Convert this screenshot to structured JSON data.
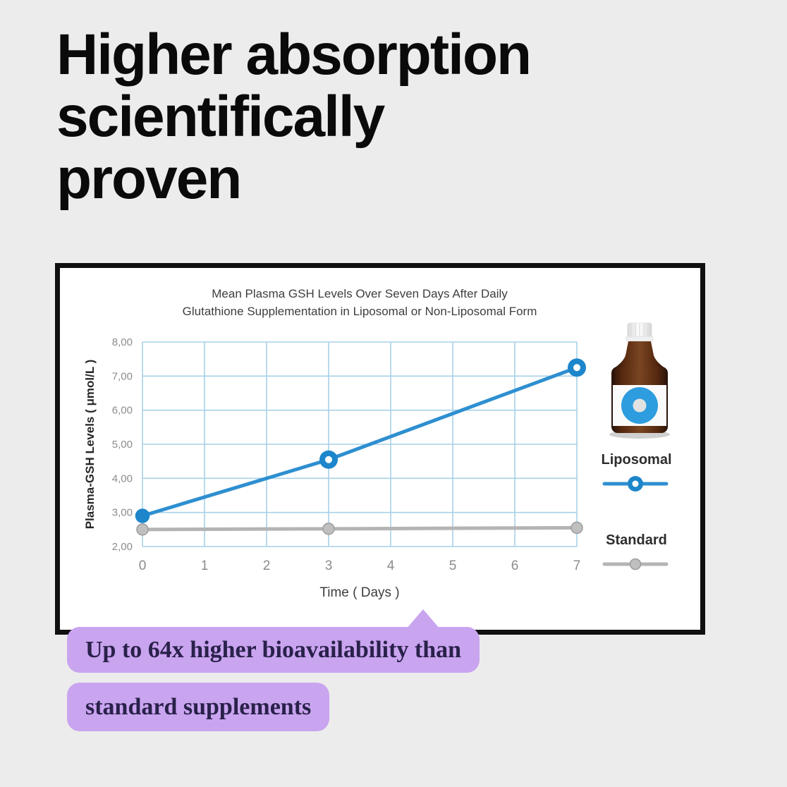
{
  "heading": {
    "lines": [
      "Higher absorption",
      "scientifically",
      "proven"
    ]
  },
  "chart_data": {
    "type": "line",
    "title_lines": [
      "Mean Plasma GSH Levels Over Seven Days After Daily",
      "Glutathione Supplementation in Liposomal or Non-Liposomal Form"
    ],
    "xlabel": "Time ( Days )",
    "ylabel": "Plasma-GSH Levels ( μmol/L )",
    "xlim": [
      0,
      7
    ],
    "ylim": [
      2,
      8
    ],
    "grid": true,
    "legend_position": "right",
    "xticks": {
      "values": [
        0,
        1,
        2,
        3,
        4,
        5,
        6,
        7
      ],
      "labels": [
        "0",
        "1",
        "2",
        "3",
        "4",
        "5",
        "6",
        "7"
      ]
    },
    "yticks": {
      "values": [
        2,
        3,
        4,
        5,
        6,
        7,
        8
      ],
      "labels": [
        "2,00",
        "3,00",
        "4,00",
        "5,00",
        "6,00",
        "7,00",
        "8,00"
      ]
    },
    "series": [
      {
        "name": "Liposomal",
        "color": "#2e8fd0",
        "marker_fill": "#1d86cb",
        "marker_stroke": "#1d86cb",
        "x": [
          0,
          3,
          7
        ],
        "y": [
          2.9,
          4.55,
          7.25
        ],
        "markers": [
          "dot",
          "donut",
          "donut"
        ]
      },
      {
        "name": "Standard",
        "color": "#b4b4b4",
        "marker_fill": "#bfbfbf",
        "marker_stroke": "#9c9c9c",
        "x": [
          0,
          3,
          7
        ],
        "y": [
          2.5,
          2.52,
          2.55
        ],
        "markers": [
          "dot",
          "dot",
          "dot"
        ]
      }
    ]
  },
  "callout": {
    "line1": "Up to 64x higher bioavailability than",
    "line2": "standard supplements",
    "bubble_color": "#c9a4ef",
    "text_color": "#29214a"
  },
  "colors": {
    "background": "#ececec",
    "card_border": "#101010",
    "grid": "#a7d1e8",
    "tick_text": "#8c8c8c",
    "accent_blue": "#2e8fd0",
    "standard_gray": "#b4b4b4"
  }
}
